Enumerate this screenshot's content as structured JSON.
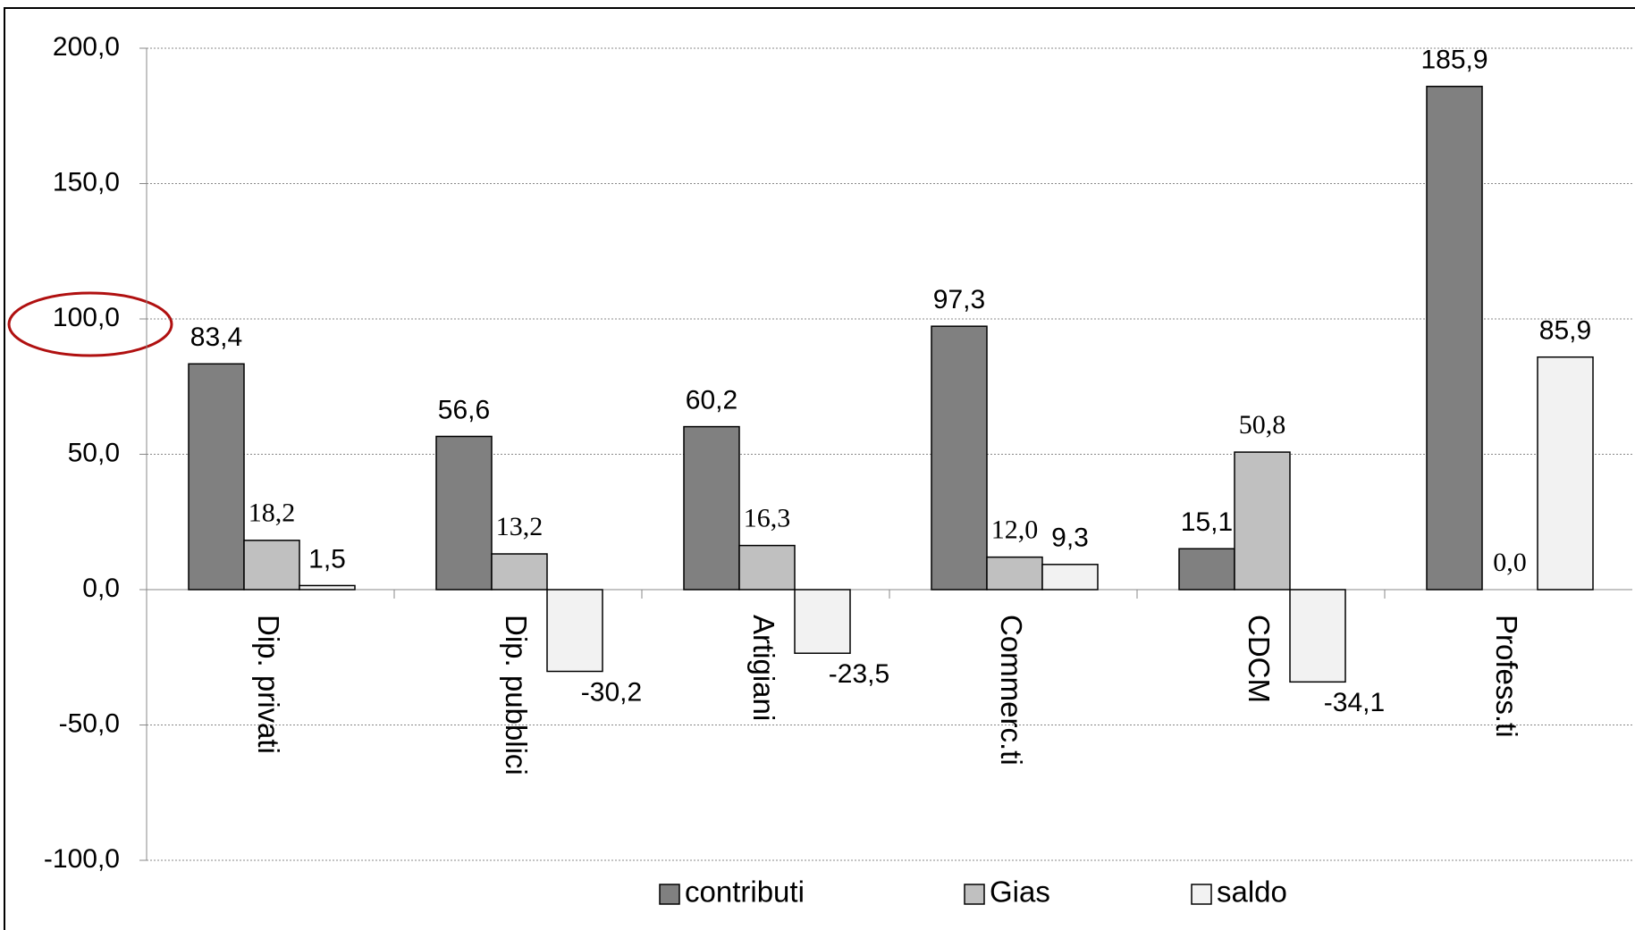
{
  "chart_data": {
    "type": "bar",
    "categories": [
      "Dip. privati",
      "Dip. pubblici",
      "Artigiani",
      "Commerc.ti",
      "CDCM",
      "Profess.ti"
    ],
    "series": [
      {
        "name": "contributi",
        "color": "#808080",
        "values": [
          83.4,
          56.6,
          60.2,
          97.3,
          15.1,
          185.9
        ],
        "value_labels": [
          "83,4",
          "56,6",
          "60,2",
          "97,3",
          "15,1",
          "185,9"
        ]
      },
      {
        "name": "Gias",
        "color": "#c0c0c0",
        "values": [
          18.2,
          13.2,
          16.3,
          12.0,
          50.8,
          0.0
        ],
        "value_labels": [
          "18,2",
          "13,2",
          "16,3",
          "12,0",
          "50,8",
          "0,0"
        ]
      },
      {
        "name": "saldo",
        "color": "#f2f2f2",
        "values": [
          1.5,
          -30.2,
          -23.5,
          9.3,
          -34.1,
          85.9
        ],
        "value_labels": [
          "1,5",
          "-30,2",
          "-23,5",
          "9,3",
          "-34,1",
          "85,9"
        ]
      }
    ],
    "ylim": [
      -100,
      200
    ],
    "yticks": [
      {
        "value": -100,
        "label": "-100,0"
      },
      {
        "value": -50,
        "label": "-50,0"
      },
      {
        "value": 0,
        "label": "0,0"
      },
      {
        "value": 50,
        "label": "50,0"
      },
      {
        "value": 100,
        "label": "100,0"
      },
      {
        "value": 150,
        "label": "150,0"
      },
      {
        "value": 200,
        "label": "200,0"
      }
    ],
    "grid": true,
    "legend": "bottom"
  }
}
